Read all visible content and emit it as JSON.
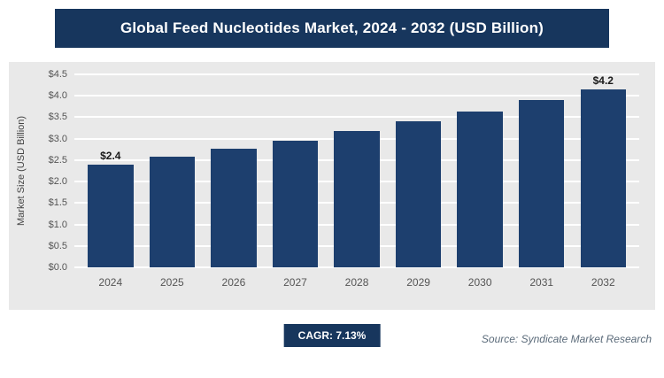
{
  "title": "Global Feed Nucleotides Market, 2024 - 2032 (USD Billion)",
  "footer": {
    "cagr_label": "CAGR: 7.13%",
    "source": "Source: Syndicate Market Research"
  },
  "chart_data": {
    "type": "bar",
    "title": "Global Feed Nucleotides Market, 2024 - 2032 (USD Billion)",
    "categories": [
      "2024",
      "2025",
      "2026",
      "2027",
      "2028",
      "2029",
      "2030",
      "2031",
      "2032"
    ],
    "values": [
      2.4,
      2.58,
      2.76,
      2.96,
      3.17,
      3.4,
      3.64,
      3.9,
      4.2
    ],
    "bar_labels": [
      "$2.4",
      "",
      "",
      "",
      "",
      "",
      "",
      "",
      "$4.2"
    ],
    "xlabel": "",
    "ylabel": "Market Size (USD Billion)",
    "ylim": [
      0,
      4.5
    ],
    "ytick_step": 0.5,
    "ytick_prefix": "$",
    "grid": true,
    "legend": "none",
    "colors": {
      "bar": "#1d3f6e",
      "title_bar": "#17365d",
      "panel_bg": "#e9e9e9",
      "grid_line": "#ffffff",
      "axis_text": "#555555"
    }
  }
}
